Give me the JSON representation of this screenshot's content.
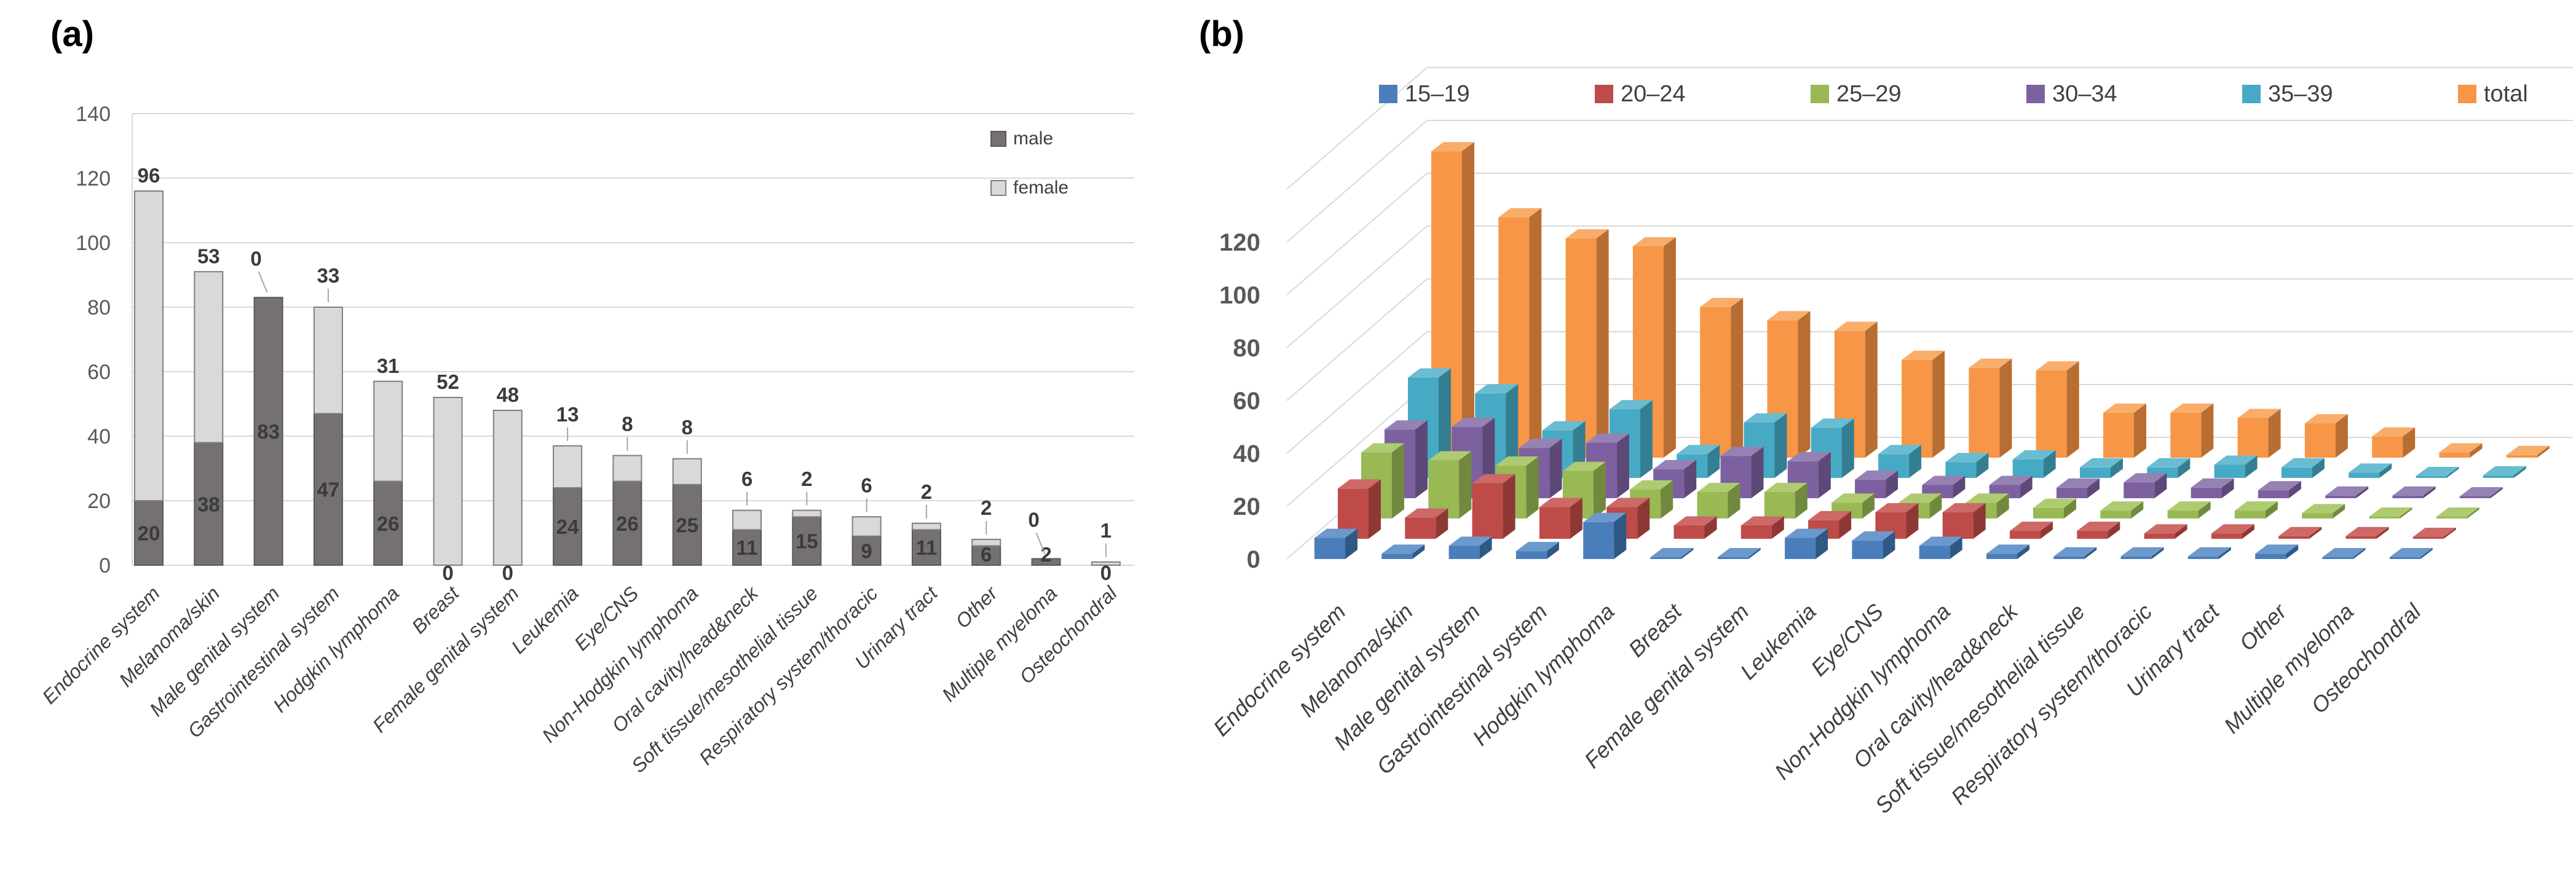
{
  "figure": {
    "panel_a_label": "(a)",
    "panel_b_label": "(b)"
  },
  "categories": [
    "Endocrine system",
    "Melanoma/skin",
    "Male genital system",
    "Gastrointestinal system",
    "Hodgkin lymphoma",
    "Breast",
    "Female genital system",
    "Leukemia",
    "Eye/CNS",
    "Non-Hodgkin lymphoma",
    "Oral cavity/head&neck",
    "Soft tissue/mesothelial tissue",
    "Respiratory system/thoracic",
    "Urinary tract",
    "Other",
    "Multiple myeloma",
    "Osteochondral"
  ],
  "chart_data": [
    {
      "type": "bar",
      "subtype": "stacked-vertical",
      "panel": "a",
      "title": "",
      "xlabel": "",
      "ylabel": "",
      "ylim": [
        0,
        140
      ],
      "y_ticks": [
        0,
        20,
        40,
        60,
        80,
        100,
        120,
        140
      ],
      "grid": true,
      "legend_position": "right",
      "categories": [
        "Endocrine system",
        "Melanoma/skin",
        "Male genital system",
        "Gastrointestinal system",
        "Hodgkin lymphoma",
        "Breast",
        "Female genital system",
        "Leukemia",
        "Eye/CNS",
        "Non-Hodgkin lymphoma",
        "Oral cavity/head&neck",
        "Soft tissue/mesothelial tissue",
        "Respiratory system/thoracic",
        "Urinary tract",
        "Other",
        "Multiple myeloma",
        "Osteochondral"
      ],
      "series": [
        {
          "name": "male",
          "color": "#767171",
          "values": [
            20,
            38,
            83,
            47,
            26,
            0,
            0,
            24,
            26,
            25,
            11,
            15,
            9,
            11,
            6,
            2,
            0
          ]
        },
        {
          "name": "female",
          "color": "#D9D9D9",
          "values": [
            96,
            53,
            0,
            33,
            31,
            52,
            48,
            13,
            8,
            8,
            6,
            2,
            6,
            2,
            2,
            0,
            1
          ]
        }
      ],
      "female_label_leader": [
        "none",
        "none",
        "diagonal",
        "tick",
        "none",
        "none",
        "none",
        "tick",
        "tick",
        "tick",
        "tick",
        "tick",
        "tick",
        "tick",
        "tick",
        "diagonal",
        "tick"
      ],
      "data_labels_shown": true
    },
    {
      "type": "bar",
      "subtype": "3d-clustered-depth",
      "panel": "b",
      "title": "",
      "xlabel": "",
      "ylabel": "",
      "ylim": [
        0,
        140
      ],
      "y_ticks": [
        0,
        20,
        40,
        60,
        80,
        100,
        120
      ],
      "grid": true,
      "legend_position": "top",
      "values_estimated_from_bar_heights": true,
      "categories": [
        "Endocrine system",
        "Melanoma/skin",
        "Male genital system",
        "Gastrointestinal system",
        "Hodgkin lymphoma",
        "Breast",
        "Female genital system",
        "Leukemia",
        "Eye/CNS",
        "Non-Hodgkin lymphoma",
        "Oral cavity/head&neck",
        "Soft tissue/mesothelial tissue",
        "Respiratory system/thoracic",
        "Urinary tract",
        "Other",
        "Multiple myeloma",
        "Osteochondral"
      ],
      "series": [
        {
          "name": "15–19",
          "color": "#4A7EBB",
          "values": [
            8,
            2,
            5,
            3,
            14,
            0,
            0,
            8,
            7,
            5,
            2,
            1,
            1,
            1,
            2,
            0,
            0
          ]
        },
        {
          "name": "20–24",
          "color": "#BE4B48",
          "values": [
            19,
            8,
            21,
            12,
            12,
            5,
            5,
            7,
            10,
            10,
            3,
            3,
            2,
            2,
            1,
            1,
            0
          ]
        },
        {
          "name": "25–29",
          "color": "#98B954",
          "values": [
            25,
            22,
            20,
            18,
            11,
            10,
            10,
            6,
            6,
            6,
            4,
            3,
            3,
            3,
            2,
            0,
            0
          ]
        },
        {
          "name": "30–34",
          "color": "#7D60A0",
          "values": [
            26,
            27,
            19,
            21,
            11,
            16,
            14,
            7,
            5,
            5,
            4,
            6,
            4,
            3,
            1,
            1,
            0
          ]
        },
        {
          "name": "35–39",
          "color": "#46AAC5",
          "values": [
            38,
            32,
            18,
            26,
            9,
            21,
            19,
            9,
            6,
            7,
            4,
            4,
            5,
            4,
            2,
            0,
            1
          ]
        },
        {
          "name": "total",
          "color": "#F79646",
          "values": [
            116,
            91,
            83,
            80,
            57,
            52,
            48,
            37,
            34,
            33,
            17,
            17,
            15,
            13,
            8,
            2,
            1
          ]
        }
      ]
    }
  ],
  "colors": {
    "gridline": "#D9D9D9",
    "tick_text": "#595959",
    "label_text": "#404040",
    "male_border": "#595959",
    "female_border": "#7F7F7F",
    "side_shade": {
      "15–19": "#2E5984",
      "20–24": "#8E3835",
      "25–29": "#71893F",
      "30–34": "#5D4878",
      "35–39": "#347E92",
      "total": "#B86D32"
    },
    "top_shade": {
      "15–19": "#6C99CC",
      "20–24": "#CD6966",
      "25–29": "#AECB72",
      "30–34": "#9681B4",
      "35–39": "#69BCD2",
      "total": "#F9AD6B"
    }
  }
}
